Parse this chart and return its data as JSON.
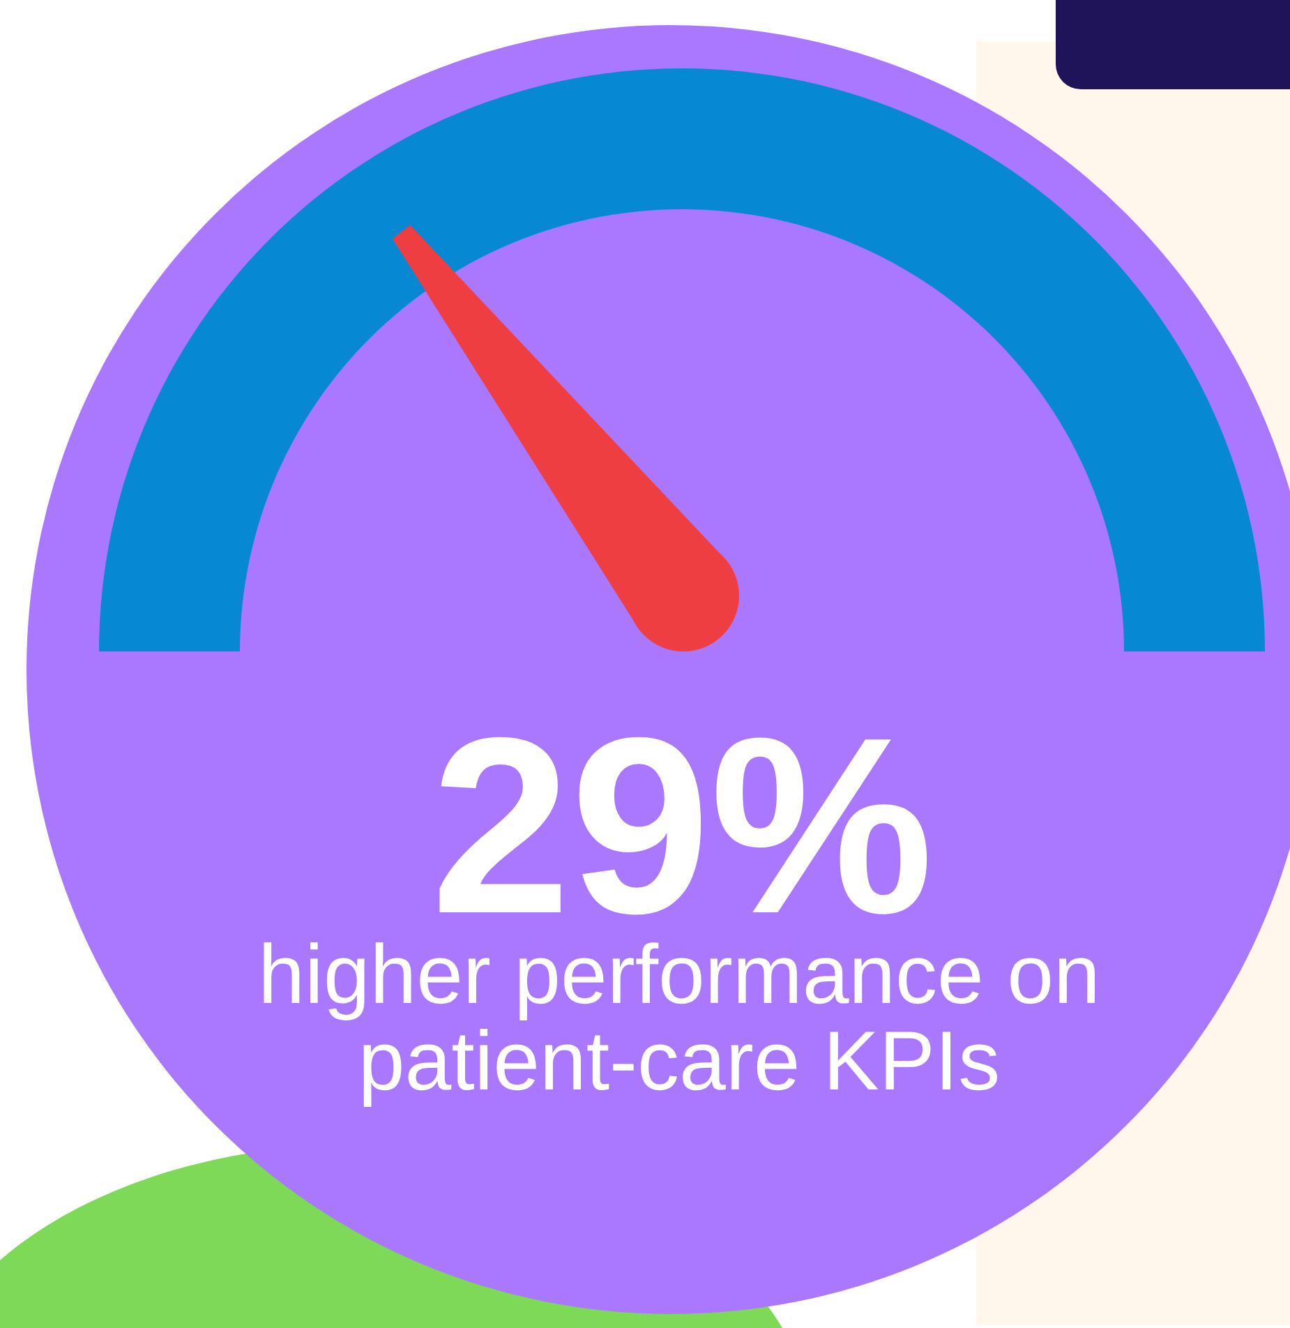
{
  "chart_data": {
    "type": "other",
    "values": [
      29
    ],
    "value_labels": [
      "29%"
    ],
    "color": "#0788d3",
    "annotations": [
      "higher performance on patient-care KPIs"
    ]
  }
}
